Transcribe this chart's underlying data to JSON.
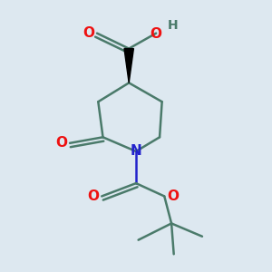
{
  "background_color": "#dde8f0",
  "bond_color": "#4a7a6a",
  "atom_colors": {
    "O": "#ee1111",
    "N": "#2222cc",
    "H": "#4a7a6a",
    "C": "#4a7a6a"
  },
  "line_width": 1.8,
  "figsize": [
    3.0,
    3.0
  ],
  "dpi": 100
}
